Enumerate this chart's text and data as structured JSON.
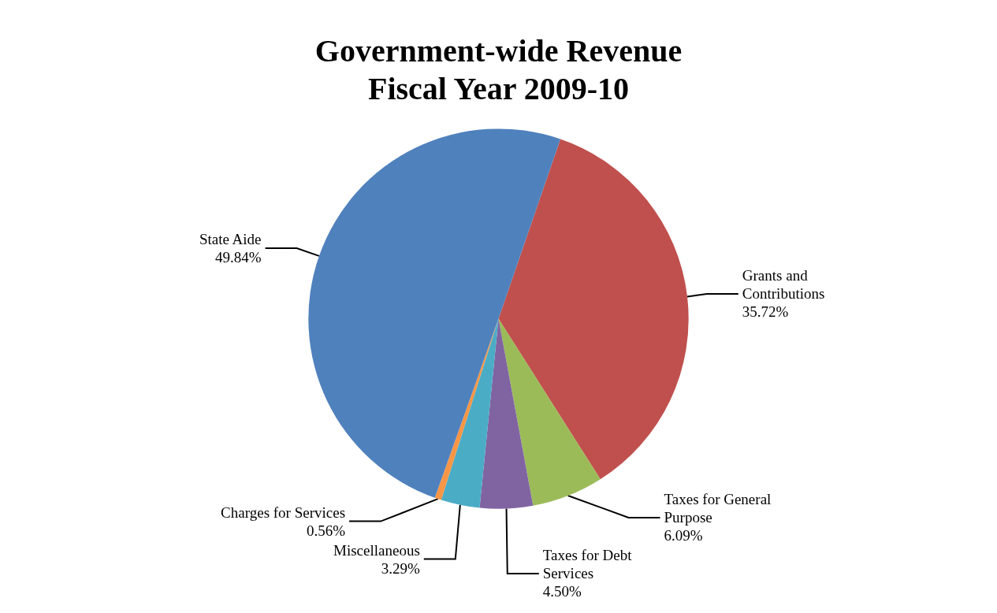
{
  "chart_data": {
    "type": "pie",
    "title": "Government-wide Revenue\nFiscal Year 2009-10",
    "categories": [
      "Grants and Contributions",
      "Taxes for General Purpose",
      "Taxes for Debt Services",
      "Miscellaneous",
      "Charges for Services",
      "State Aide"
    ],
    "values": [
      35.72,
      6.09,
      4.5,
      3.29,
      0.56,
      49.84
    ],
    "value_labels": [
      "35.72%",
      "6.09%",
      "4.50%",
      "3.29%",
      "0.56%",
      "49.84%"
    ],
    "colors": [
      "#c0504d",
      "#9bbb59",
      "#8064a2",
      "#4bacc6",
      "#f79646",
      "#4f81bd"
    ],
    "legend": false
  }
}
